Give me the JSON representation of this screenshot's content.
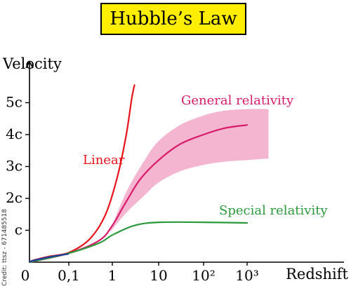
{
  "chart_data": {
    "type": "line",
    "title": "Hubble’s Law",
    "xlabel": "Redshift",
    "ylabel": "Velocity",
    "xscale": "log",
    "xticks": [
      {
        "value": 0,
        "label": "0"
      },
      {
        "value": 0.1,
        "label": "0,1"
      },
      {
        "value": 1,
        "label": "1"
      },
      {
        "value": 10,
        "label": "10"
      },
      {
        "value": 100,
        "label": "10²"
      },
      {
        "value": 1000,
        "label": "10³"
      }
    ],
    "yticks": [
      {
        "value": 1,
        "label": "c"
      },
      {
        "value": 2,
        "label": "2c"
      },
      {
        "value": 3,
        "label": "3c"
      },
      {
        "value": 4,
        "label": "4c"
      },
      {
        "value": 5,
        "label": "5c"
      }
    ],
    "ylim": [
      0,
      5.7
    ],
    "grid": false,
    "series": [
      {
        "name": "Linear",
        "color": "#e8141c",
        "points": [
          [
            0,
            0
          ],
          [
            0.01,
            0.06
          ],
          [
            0.05,
            0.18
          ],
          [
            0.1,
            0.3
          ],
          [
            0.3,
            0.72
          ],
          [
            0.7,
            1.5
          ],
          [
            1.3,
            2.7
          ],
          [
            2,
            4.0
          ],
          [
            2.6,
            5.1
          ],
          [
            3.0,
            5.55
          ]
        ]
      },
      {
        "name": "General relativity",
        "color": "#d81b6a",
        "points": [
          [
            0,
            0
          ],
          [
            0.1,
            0.28
          ],
          [
            0.5,
            0.68
          ],
          [
            1,
            1.15
          ],
          [
            2,
            1.9
          ],
          [
            4,
            2.6
          ],
          [
            10,
            3.2
          ],
          [
            30,
            3.7
          ],
          [
            100,
            4.0
          ],
          [
            300,
            4.2
          ],
          [
            1000,
            4.3
          ]
        ]
      },
      {
        "name": "Special relativity",
        "color": "#2a9a3c",
        "points": [
          [
            0,
            0
          ],
          [
            0.1,
            0.28
          ],
          [
            0.5,
            0.6
          ],
          [
            1,
            0.85
          ],
          [
            3,
            1.15
          ],
          [
            10,
            1.25
          ],
          [
            100,
            1.25
          ],
          [
            1000,
            1.23
          ]
        ]
      }
    ],
    "band": {
      "color": "#f2a8c8",
      "upper": [
        [
          0.9,
          1.0
        ],
        [
          2,
          2.2
        ],
        [
          5,
          3.2
        ],
        [
          10,
          3.8
        ],
        [
          30,
          4.3
        ],
        [
          100,
          4.6
        ],
        [
          300,
          4.75
        ],
        [
          1000,
          4.8
        ],
        [
          3000,
          4.8
        ]
      ],
      "lower": [
        [
          0.9,
          0.95
        ],
        [
          2,
          1.55
        ],
        [
          5,
          2.1
        ],
        [
          10,
          2.5
        ],
        [
          30,
          2.85
        ],
        [
          100,
          3.05
        ],
        [
          300,
          3.15
        ],
        [
          1000,
          3.2
        ],
        [
          3000,
          3.25
        ]
      ]
    },
    "first_segment_color": "#1a3fa0"
  },
  "side_text": "Credit: ttsz - 671485518"
}
